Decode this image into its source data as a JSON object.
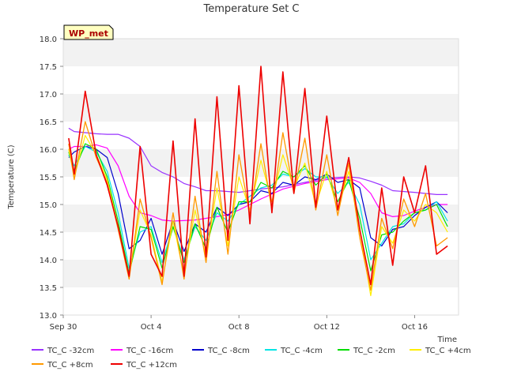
{
  "chart_data": {
    "type": "line",
    "title": "Temperature Set C",
    "xlabel": "Time",
    "ylabel": "Temperature (C)",
    "ylim": [
      13.0,
      18.0
    ],
    "y_ticks": [
      "13.0",
      "13.5",
      "14.0",
      "14.5",
      "15.0",
      "15.5",
      "16.0",
      "16.5",
      "17.0",
      "17.5",
      "18.0"
    ],
    "xlim": [
      "2023-09-30",
      "2023-10-18"
    ],
    "x_ticks": [
      {
        "date": "2023-09-30",
        "label": "Sep 30"
      },
      {
        "date": "2023-10-04",
        "label": "Oct 4"
      },
      {
        "date": "2023-10-08",
        "label": "Oct 8"
      },
      {
        "date": "2023-10-12",
        "label": "Oct 12"
      },
      {
        "date": "2023-10-16",
        "label": "Oct 16"
      }
    ],
    "grid": "horizontal bands",
    "legend_position": "bottom",
    "annotation": "WP_met",
    "series": [
      {
        "name": "TC_C -32cm",
        "color": "#9933ff",
        "width": 1.2,
        "x": [
          "2023-09-30T06:00",
          "2023-09-30T12:00",
          "2023-10-01T00:00",
          "2023-10-01T12:00",
          "2023-10-02T00:00",
          "2023-10-02T12:00",
          "2023-10-03T00:00",
          "2023-10-03T12:00",
          "2023-10-04T00:00",
          "2023-10-04T12:00",
          "2023-10-05T00:00",
          "2023-10-05T12:00",
          "2023-10-06T00:00",
          "2023-10-06T12:00",
          "2023-10-07T00:00",
          "2023-10-08T00:00",
          "2023-10-09T00:00",
          "2023-10-10T00:00",
          "2023-10-11T00:00",
          "2023-10-12T00:00",
          "2023-10-13T00:00",
          "2023-10-13T12:00",
          "2023-10-14T00:00",
          "2023-10-14T12:00",
          "2023-10-15T00:00",
          "2023-10-16T00:00",
          "2023-10-17T00:00",
          "2023-10-17T12:00"
        ],
        "y": [
          16.38,
          16.32,
          16.3,
          16.28,
          16.27,
          16.27,
          16.2,
          16.05,
          15.7,
          15.58,
          15.5,
          15.38,
          15.32,
          15.25,
          15.25,
          15.22,
          15.28,
          15.32,
          15.4,
          15.48,
          15.5,
          15.48,
          15.42,
          15.35,
          15.25,
          15.22,
          15.18,
          15.18
        ]
      },
      {
        "name": "TC_C -16cm",
        "color": "#ff00ff",
        "width": 1.2,
        "x": [
          "2023-09-30T06:00",
          "2023-09-30T12:00",
          "2023-10-01T00:00",
          "2023-10-01T12:00",
          "2023-10-02T00:00",
          "2023-10-02T12:00",
          "2023-10-03T00:00",
          "2023-10-03T12:00",
          "2023-10-04T00:00",
          "2023-10-04T12:00",
          "2023-10-05T00:00",
          "2023-10-06T00:00",
          "2023-10-07T00:00",
          "2023-10-07T12:00",
          "2023-10-08T00:00",
          "2023-10-09T00:00",
          "2023-10-10T00:00",
          "2023-10-11T00:00",
          "2023-10-12T00:00",
          "2023-10-13T00:00",
          "2023-10-13T12:00",
          "2023-10-14T00:00",
          "2023-10-14T12:00",
          "2023-10-15T00:00",
          "2023-10-15T12:00",
          "2023-10-16T00:00",
          "2023-10-16T12:00",
          "2023-10-17T00:00",
          "2023-10-17T12:00"
        ],
        "y": [
          16.0,
          16.05,
          16.05,
          16.08,
          16.02,
          15.7,
          15.15,
          14.85,
          14.8,
          14.72,
          14.7,
          14.72,
          14.78,
          14.82,
          14.9,
          15.1,
          15.28,
          15.38,
          15.45,
          15.48,
          15.4,
          15.2,
          14.85,
          14.78,
          14.8,
          14.88,
          14.95,
          15.0,
          15.0
        ]
      },
      {
        "name": "TC_C -8cm",
        "color": "#0000cc",
        "width": 1.2,
        "x": [
          "2023-09-30T06:00",
          "2023-09-30T12:00",
          "2023-10-01T00:00",
          "2023-10-01T12:00",
          "2023-10-02T00:00",
          "2023-10-02T12:00",
          "2023-10-03T00:00",
          "2023-10-03T12:00",
          "2023-10-04T00:00",
          "2023-10-04T12:00",
          "2023-10-05T00:00",
          "2023-10-05T12:00",
          "2023-10-06T00:00",
          "2023-10-06T12:00",
          "2023-10-07T00:00",
          "2023-10-07T12:00",
          "2023-10-08T00:00",
          "2023-10-08T12:00",
          "2023-10-09T00:00",
          "2023-10-09T12:00",
          "2023-10-10T00:00",
          "2023-10-10T12:00",
          "2023-10-11T00:00",
          "2023-10-11T12:00",
          "2023-10-12T00:00",
          "2023-10-12T12:00",
          "2023-10-13T00:00",
          "2023-10-13T12:00",
          "2023-10-14T00:00",
          "2023-10-14T12:00",
          "2023-10-15T00:00",
          "2023-10-15T12:00",
          "2023-10-16T00:00",
          "2023-10-16T12:00",
          "2023-10-17T00:00",
          "2023-10-17T12:00"
        ],
        "y": [
          15.85,
          15.95,
          16.05,
          16.0,
          15.85,
          15.2,
          14.2,
          14.35,
          14.75,
          14.1,
          14.7,
          14.15,
          14.65,
          14.5,
          14.95,
          14.8,
          15.0,
          15.05,
          15.25,
          15.2,
          15.4,
          15.35,
          15.5,
          15.45,
          15.55,
          15.4,
          15.45,
          15.3,
          14.4,
          14.25,
          14.55,
          14.6,
          14.8,
          14.95,
          15.05,
          14.85
        ]
      },
      {
        "name": "TC_C -4cm",
        "color": "#00e5e5",
        "width": 1.2,
        "x": [
          "2023-09-30T06:00",
          "2023-09-30T12:00",
          "2023-10-01T00:00",
          "2023-10-01T12:00",
          "2023-10-02T00:00",
          "2023-10-02T12:00",
          "2023-10-03T00:00",
          "2023-10-03T12:00",
          "2023-10-04T00:00",
          "2023-10-04T12:00",
          "2023-10-05T00:00",
          "2023-10-05T12:00",
          "2023-10-06T00:00",
          "2023-10-06T12:00",
          "2023-10-07T00:00",
          "2023-10-07T12:00",
          "2023-10-08T00:00",
          "2023-10-08T12:00",
          "2023-10-09T00:00",
          "2023-10-09T12:00",
          "2023-10-10T00:00",
          "2023-10-10T12:00",
          "2023-10-11T00:00",
          "2023-10-11T12:00",
          "2023-10-12T00:00",
          "2023-10-12T12:00",
          "2023-10-13T00:00",
          "2023-10-13T12:00",
          "2023-10-14T00:00",
          "2023-10-14T12:00",
          "2023-10-15T00:00",
          "2023-10-15T12:00",
          "2023-10-16T00:00",
          "2023-10-16T12:00",
          "2023-10-17T00:00",
          "2023-10-17T12:00"
        ],
        "y": [
          15.9,
          15.7,
          16.05,
          15.95,
          15.6,
          14.85,
          13.85,
          14.5,
          14.6,
          13.95,
          14.6,
          14.0,
          14.6,
          14.35,
          14.85,
          14.7,
          15.0,
          15.15,
          15.3,
          15.35,
          15.55,
          15.5,
          15.65,
          15.5,
          15.5,
          15.2,
          15.4,
          15.0,
          14.0,
          14.3,
          14.6,
          14.65,
          14.85,
          14.9,
          15.05,
          14.7
        ]
      },
      {
        "name": "TC_C -2cm",
        "color": "#00dd00",
        "width": 1.2,
        "x": [
          "2023-09-30T06:00",
          "2023-09-30T12:00",
          "2023-10-01T00:00",
          "2023-10-01T12:00",
          "2023-10-02T00:00",
          "2023-10-02T12:00",
          "2023-10-03T00:00",
          "2023-10-03T12:00",
          "2023-10-04T00:00",
          "2023-10-04T12:00",
          "2023-10-05T00:00",
          "2023-10-05T12:00",
          "2023-10-06T00:00",
          "2023-10-06T12:00",
          "2023-10-07T00:00",
          "2023-10-07T12:00",
          "2023-10-08T00:00",
          "2023-10-08T12:00",
          "2023-10-09T00:00",
          "2023-10-09T12:00",
          "2023-10-10T00:00",
          "2023-10-10T12:00",
          "2023-10-11T00:00",
          "2023-10-11T12:00",
          "2023-10-12T00:00",
          "2023-10-12T12:00",
          "2023-10-13T00:00",
          "2023-10-13T12:00",
          "2023-10-14T00:00",
          "2023-10-14T12:00",
          "2023-10-15T00:00",
          "2023-10-15T12:00",
          "2023-10-16T00:00",
          "2023-10-16T12:00",
          "2023-10-17T00:00",
          "2023-10-17T12:00"
        ],
        "y": [
          15.95,
          15.6,
          16.1,
          16.0,
          15.5,
          14.7,
          13.75,
          14.6,
          14.55,
          13.85,
          14.6,
          13.95,
          14.65,
          14.2,
          14.95,
          14.5,
          15.05,
          15.05,
          15.4,
          15.3,
          15.6,
          15.5,
          15.7,
          15.35,
          15.55,
          15.05,
          15.45,
          14.75,
          13.8,
          14.45,
          14.5,
          14.7,
          14.85,
          14.9,
          15.0,
          14.6
        ]
      },
      {
        "name": "TC_C +4cm",
        "color": "#ffee00",
        "width": 1.2,
        "x": [
          "2023-09-30T06:00",
          "2023-09-30T12:00",
          "2023-10-01T00:00",
          "2023-10-01T12:00",
          "2023-10-02T00:00",
          "2023-10-02T12:00",
          "2023-10-03T00:00",
          "2023-10-03T12:00",
          "2023-10-04T00:00",
          "2023-10-04T12:00",
          "2023-10-05T00:00",
          "2023-10-05T12:00",
          "2023-10-06T00:00",
          "2023-10-06T12:00",
          "2023-10-07T00:00",
          "2023-10-07T12:00",
          "2023-10-08T00:00",
          "2023-10-08T12:00",
          "2023-10-09T00:00",
          "2023-10-09T12:00",
          "2023-10-10T00:00",
          "2023-10-10T12:00",
          "2023-10-11T00:00",
          "2023-10-11T12:00",
          "2023-10-12T00:00",
          "2023-10-12T12:00",
          "2023-10-13T00:00",
          "2023-10-13T12:00",
          "2023-10-14T00:00",
          "2023-10-14T12:00",
          "2023-10-15T00:00",
          "2023-10-15T12:00",
          "2023-10-16T00:00",
          "2023-10-16T12:00",
          "2023-10-17T00:00",
          "2023-10-17T12:00"
        ],
        "y": [
          16.0,
          15.5,
          16.25,
          15.9,
          15.45,
          14.6,
          13.7,
          14.9,
          14.45,
          13.6,
          14.7,
          13.7,
          14.9,
          14.05,
          15.3,
          14.25,
          15.5,
          14.9,
          15.8,
          15.05,
          15.9,
          15.3,
          15.75,
          15.0,
          15.6,
          14.9,
          15.6,
          14.55,
          13.35,
          14.6,
          14.3,
          14.9,
          14.7,
          15.0,
          14.85,
          14.5
        ]
      },
      {
        "name": "TC_C +8cm",
        "color": "#ff9900",
        "width": 1.3,
        "x": [
          "2023-09-30T06:00",
          "2023-09-30T12:00",
          "2023-10-01T00:00",
          "2023-10-01T12:00",
          "2023-10-02T00:00",
          "2023-10-02T12:00",
          "2023-10-03T00:00",
          "2023-10-03T12:00",
          "2023-10-04T00:00",
          "2023-10-04T12:00",
          "2023-10-05T00:00",
          "2023-10-05T12:00",
          "2023-10-06T00:00",
          "2023-10-06T12:00",
          "2023-10-07T00:00",
          "2023-10-07T12:00",
          "2023-10-08T00:00",
          "2023-10-08T12:00",
          "2023-10-09T00:00",
          "2023-10-09T12:00",
          "2023-10-10T00:00",
          "2023-10-10T12:00",
          "2023-10-11T00:00",
          "2023-10-11T12:00",
          "2023-10-12T00:00",
          "2023-10-12T12:00",
          "2023-10-13T00:00",
          "2023-10-13T12:00",
          "2023-10-14T00:00",
          "2023-10-14T12:00",
          "2023-10-15T00:00",
          "2023-10-15T12:00",
          "2023-10-16T00:00",
          "2023-10-16T12:00",
          "2023-10-17T00:00",
          "2023-10-17T12:00"
        ],
        "y": [
          16.1,
          15.45,
          16.5,
          15.85,
          15.4,
          14.55,
          13.65,
          15.1,
          14.4,
          13.55,
          14.85,
          13.65,
          15.15,
          13.95,
          15.6,
          14.1,
          15.9,
          14.8,
          16.1,
          14.9,
          16.3,
          15.2,
          16.2,
          14.9,
          15.9,
          14.8,
          15.75,
          14.4,
          13.45,
          14.75,
          14.2,
          15.1,
          14.6,
          15.2,
          14.25,
          14.4
        ]
      },
      {
        "name": "TC_C +12cm",
        "color": "#ee0000",
        "width": 1.6,
        "x": [
          "2023-09-30T06:00",
          "2023-09-30T12:00",
          "2023-10-01T00:00",
          "2023-10-01T12:00",
          "2023-10-02T00:00",
          "2023-10-02T12:00",
          "2023-10-03T00:00",
          "2023-10-03T12:00",
          "2023-10-04T00:00",
          "2023-10-04T12:00",
          "2023-10-05T00:00",
          "2023-10-05T12:00",
          "2023-10-06T00:00",
          "2023-10-06T12:00",
          "2023-10-07T00:00",
          "2023-10-07T12:00",
          "2023-10-08T00:00",
          "2023-10-08T12:00",
          "2023-10-09T00:00",
          "2023-10-09T12:00",
          "2023-10-10T00:00",
          "2023-10-10T12:00",
          "2023-10-11T00:00",
          "2023-10-11T12:00",
          "2023-10-12T00:00",
          "2023-10-12T12:00",
          "2023-10-13T00:00",
          "2023-10-13T12:00",
          "2023-10-14T00:00",
          "2023-10-14T12:00",
          "2023-10-15T00:00",
          "2023-10-15T12:00",
          "2023-10-16T00:00",
          "2023-10-16T12:00",
          "2023-10-17T00:00",
          "2023-10-17T12:00"
        ],
        "y": [
          16.2,
          15.55,
          17.05,
          15.9,
          15.35,
          14.6,
          13.7,
          16.05,
          14.1,
          13.7,
          16.15,
          13.7,
          16.55,
          14.05,
          16.95,
          14.35,
          17.15,
          14.65,
          17.5,
          14.85,
          17.4,
          15.2,
          17.1,
          14.95,
          16.6,
          14.9,
          15.85,
          14.55,
          13.55,
          15.3,
          13.9,
          15.5,
          14.85,
          15.7,
          14.1,
          14.25
        ]
      }
    ]
  }
}
